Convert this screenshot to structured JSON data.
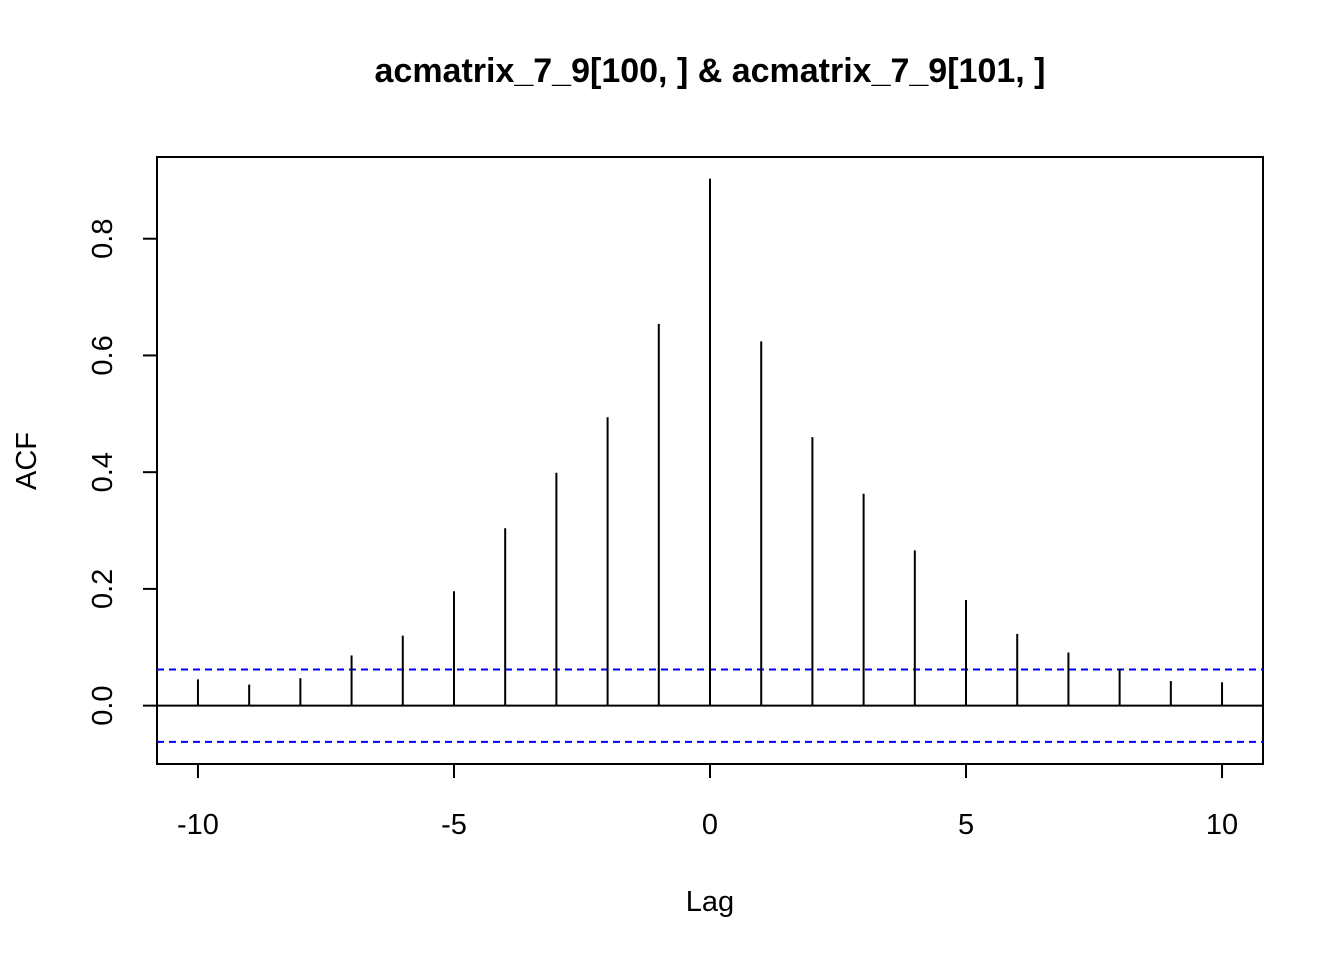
{
  "chart_data": {
    "type": "bar",
    "title": "acmatrix_7_9[100, ] & acmatrix_7_9[101, ]",
    "xlabel": "Lag",
    "ylabel": "ACF",
    "xlim": [
      -10.8,
      10.8
    ],
    "ylim": [
      -0.1,
      0.94
    ],
    "x_ticks": [
      -10,
      -5,
      0,
      5,
      10
    ],
    "y_ticks": [
      0.0,
      0.2,
      0.4,
      0.6,
      0.8
    ],
    "x_tick_labels": [
      "-10",
      "-5",
      "0",
      "5",
      "10"
    ],
    "y_tick_labels": [
      "0.0",
      "0.2",
      "0.4",
      "0.6",
      "0.8"
    ],
    "lags": [
      -10,
      -9,
      -8,
      -7,
      -6,
      -5,
      -4,
      -3,
      -2,
      -1,
      0,
      1,
      2,
      3,
      4,
      5,
      6,
      7,
      8,
      9,
      10
    ],
    "values": [
      0.045,
      0.036,
      0.047,
      0.086,
      0.12,
      0.196,
      0.304,
      0.399,
      0.494,
      0.654,
      0.903,
      0.624,
      0.46,
      0.363,
      0.266,
      0.181,
      0.123,
      0.091,
      0.063,
      0.042,
      0.04
    ],
    "confidence_bounds": [
      0.062,
      -0.062
    ],
    "bound_color": "#0000ff",
    "line_color": "#000000",
    "grid": false
  }
}
